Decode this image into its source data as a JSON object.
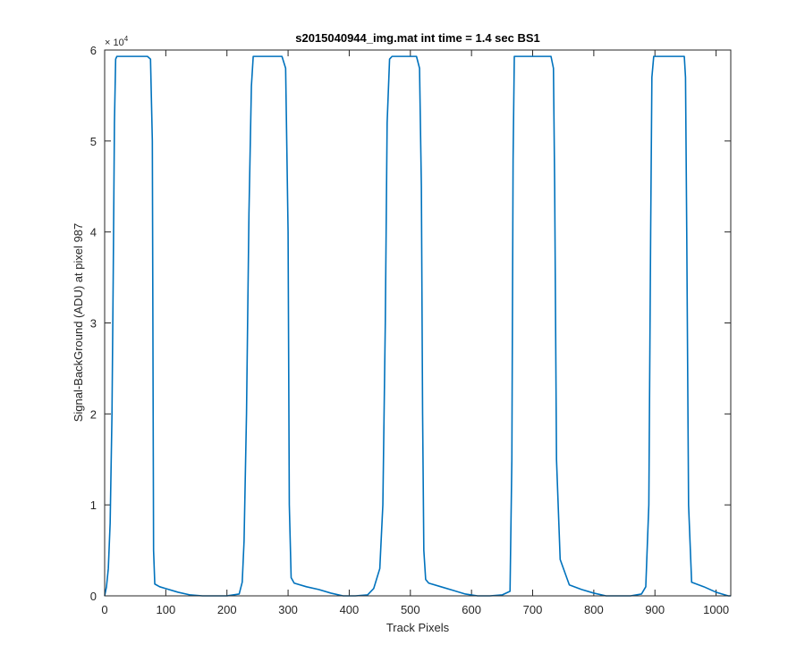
{
  "chart_data": {
    "type": "line",
    "title": "s2015040944_img.mat int time = 1.4 sec   BS1",
    "xlabel": "Track Pixels",
    "ylabel": "Signal-BackGround (ADU) at pixel 987",
    "y_exponent_label": "× 10",
    "y_exponent_power": "4",
    "xlim": [
      0,
      1024
    ],
    "ylim": [
      0,
      60000
    ],
    "x_ticks": [
      0,
      100,
      200,
      300,
      400,
      500,
      600,
      700,
      800,
      900,
      1000
    ],
    "x_tick_labels": [
      "0",
      "100",
      "200",
      "300",
      "400",
      "500",
      "600",
      "700",
      "800",
      "900",
      "1000"
    ],
    "y_ticks": [
      0,
      10000,
      20000,
      30000,
      40000,
      50000,
      60000
    ],
    "y_tick_labels": [
      "0",
      "1",
      "2",
      "3",
      "4",
      "5",
      "6"
    ],
    "grid": false,
    "series": [
      {
        "color": "#0072bd",
        "x": [
          0,
          3,
          6,
          9,
          12,
          14,
          16,
          18,
          20,
          30,
          50,
          70,
          75,
          78,
          80,
          82,
          90,
          100,
          120,
          140,
          160,
          180,
          200,
          220,
          225,
          228,
          232,
          236,
          240,
          243,
          250,
          270,
          290,
          296,
          300,
          302,
          305,
          310,
          330,
          350,
          370,
          390,
          410,
          430,
          440,
          450,
          455,
          459,
          462,
          466,
          470,
          490,
          510,
          515,
          518,
          520,
          522,
          525,
          530,
          550,
          570,
          590,
          610,
          630,
          650,
          663,
          666,
          668,
          670,
          680,
          700,
          720,
          730,
          734,
          736,
          739,
          745,
          760,
          780,
          800,
          820,
          840,
          860,
          878,
          885,
          890,
          893,
          895,
          898,
          920,
          940,
          948,
          950,
          952,
          955,
          960,
          980,
          1000,
          1010,
          1020,
          1024
        ],
        "y": [
          0,
          1000,
          3000,
          8000,
          20000,
          35000,
          52000,
          59000,
          59300,
          59300,
          59300,
          59300,
          59000,
          50000,
          5000,
          1300,
          1000,
          800,
          400,
          100,
          0,
          0,
          0,
          200,
          1500,
          6000,
          20000,
          42000,
          56000,
          59300,
          59300,
          59300,
          59300,
          58000,
          40000,
          10000,
          2000,
          1400,
          1000,
          700,
          300,
          0,
          0,
          100,
          800,
          3000,
          10000,
          30000,
          52000,
          59000,
          59300,
          59300,
          59300,
          58000,
          45000,
          20000,
          5000,
          1800,
          1400,
          1000,
          600,
          200,
          0,
          0,
          100,
          500,
          15000,
          48000,
          59300,
          59300,
          59300,
          59300,
          59300,
          58000,
          45000,
          15000,
          4000,
          1200,
          700,
          300,
          0,
          0,
          0,
          200,
          1000,
          10000,
          40000,
          57000,
          59300,
          59300,
          59300,
          59300,
          57000,
          40000,
          10000,
          1500,
          1000,
          400,
          200,
          0,
          0
        ]
      }
    ]
  }
}
